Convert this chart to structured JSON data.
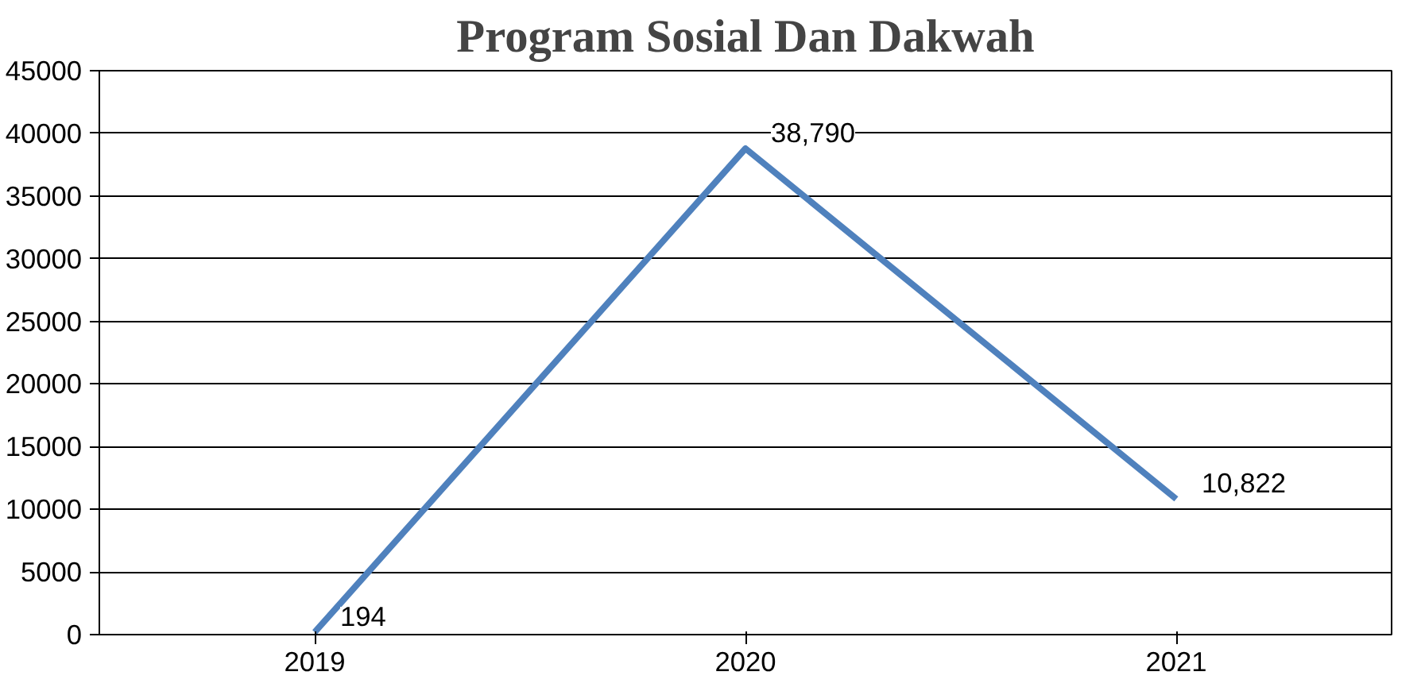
{
  "chart_data": {
    "type": "line",
    "title": "Program Sosial Dan Dakwah",
    "categories": [
      "2019",
      "2020",
      "2021"
    ],
    "series": [
      {
        "color": "#4f81bd",
        "values": [
          194,
          38790,
          10822
        ],
        "value_labels": [
          "194",
          "38,790",
          "10,822"
        ]
      }
    ],
    "ylim": [
      0,
      45000
    ],
    "yticks": [
      0,
      5000,
      10000,
      15000,
      20000,
      25000,
      30000,
      35000,
      40000,
      45000
    ],
    "grid": "y",
    "marker": "none",
    "line_style": "solid"
  }
}
